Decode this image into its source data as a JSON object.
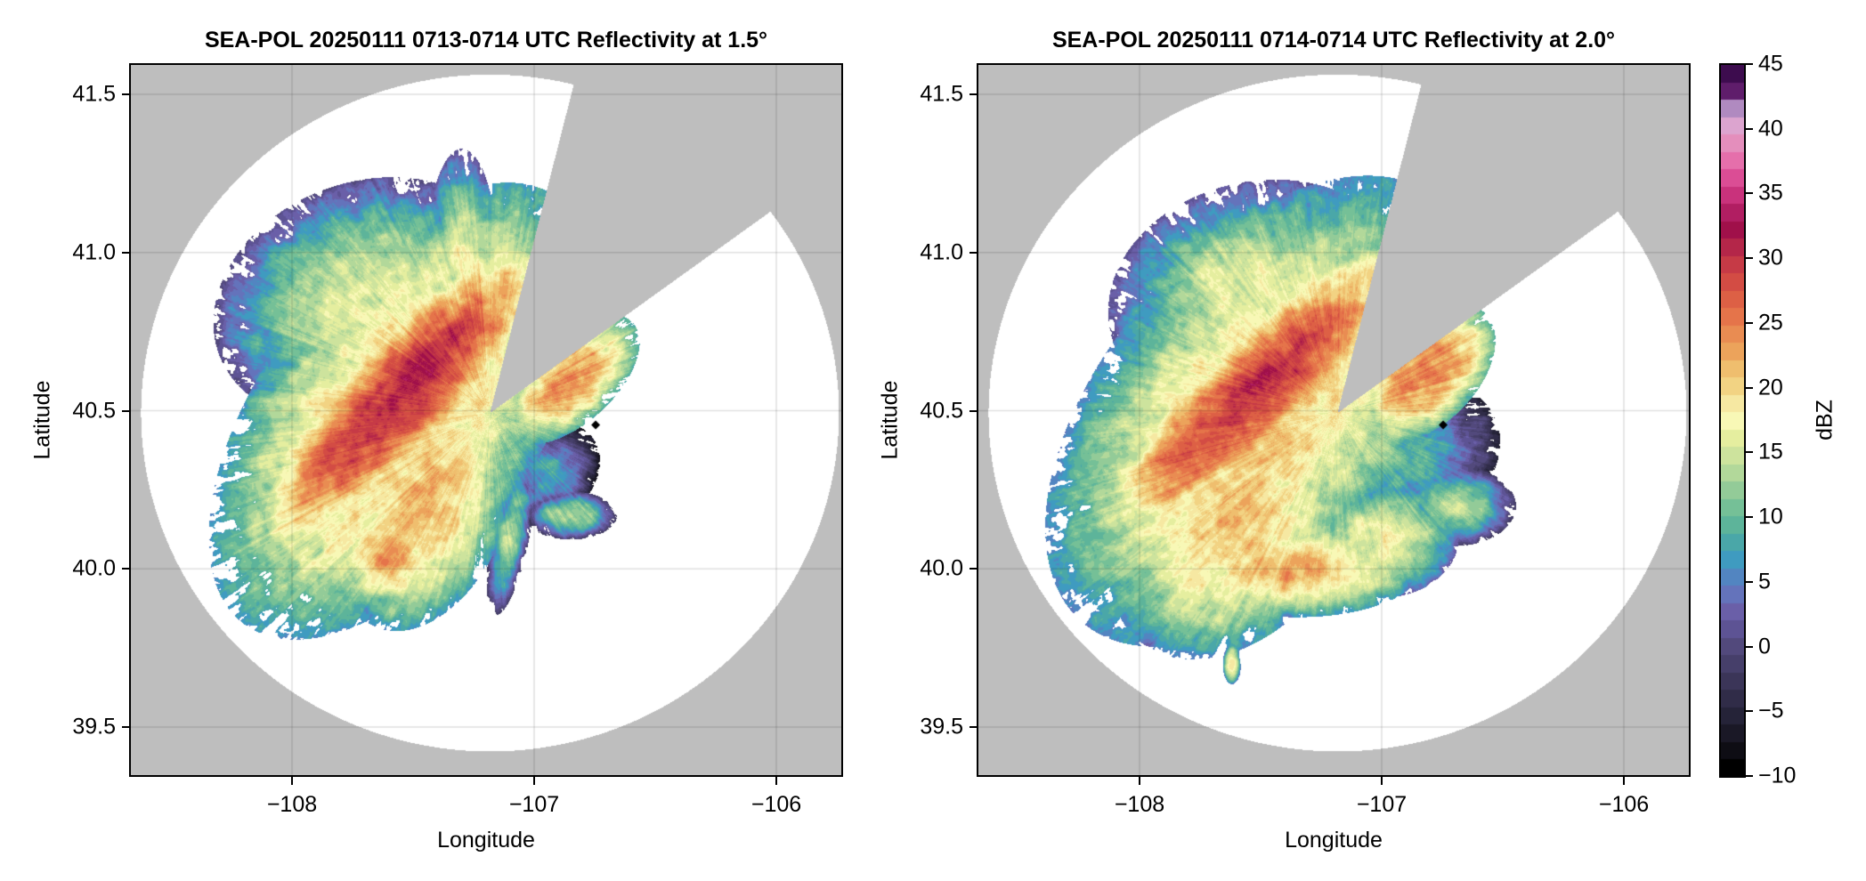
{
  "chart_data": [
    {
      "type": "heatmap",
      "title": "SEA-POL 20250111 0713-0714 UTC Reflectivity at 1.5°",
      "xlabel": "Longitude",
      "ylabel": "Latitude",
      "xlim": [
        -108.669,
        -105.728
      ],
      "ylim": [
        39.345,
        41.596
      ],
      "xticks": [
        -108,
        -107,
        -106
      ],
      "xtick_labels": [
        "−108",
        "−107",
        "−106"
      ],
      "yticks": [
        39.5,
        40.0,
        40.5,
        41.0,
        41.5
      ],
      "ytick_labels": [
        "39.5",
        "40.0",
        "40.5",
        "41.0",
        "41.5"
      ],
      "grid": true,
      "background_color": "#bebebe",
      "coverage_color": "#ffffff",
      "radar_center": {
        "lon": -107.184,
        "lat": 40.494
      },
      "max_range_deg": {
        "lon": 1.441,
        "lat": 1.07
      },
      "blocked_sectors_deg_from_north": [
        [
          14.3,
          54.3
        ]
      ],
      "marker": {
        "lon": -106.746,
        "lat": 40.455,
        "shape": "diamond",
        "color": "#000000"
      },
      "field": "reflectivity_dBZ",
      "features": [
        {
          "lon": -107.55,
          "lat": 40.55,
          "rx": 0.55,
          "ry": 0.16,
          "rot": -38,
          "dbz": 31
        },
        {
          "lon": -107.75,
          "lat": 40.4,
          "rx": 0.35,
          "ry": 0.14,
          "rot": -40,
          "dbz": 29
        },
        {
          "lon": -107.35,
          "lat": 40.72,
          "rx": 0.25,
          "ry": 0.1,
          "rot": -25,
          "dbz": 30
        },
        {
          "lon": -107.55,
          "lat": 40.5,
          "rx": 0.75,
          "ry": 0.4,
          "rot": -40,
          "dbz": 22
        },
        {
          "lon": -107.7,
          "lat": 40.85,
          "rx": 0.5,
          "ry": 0.3,
          "rot": -10,
          "dbz": 16
        },
        {
          "lon": -107.45,
          "lat": 40.2,
          "rx": 0.35,
          "ry": 0.25,
          "rot": -50,
          "dbz": 22
        },
        {
          "lon": -107.6,
          "lat": 40.05,
          "rx": 0.18,
          "ry": 0.14,
          "rot": 0,
          "dbz": 23
        },
        {
          "lon": -107.3,
          "lat": 40.95,
          "rx": 0.12,
          "ry": 0.3,
          "rot": 0,
          "dbz": 17
        },
        {
          "lon": -106.85,
          "lat": 40.6,
          "rx": 0.25,
          "ry": 0.12,
          "rot": -30,
          "dbz": 24
        },
        {
          "lon": -106.95,
          "lat": 40.3,
          "rx": 0.18,
          "ry": 0.12,
          "rot": -20,
          "dbz": 8
        },
        {
          "lon": -107.22,
          "lat": 40.42,
          "rx": 0.1,
          "ry": 0.08,
          "rot": 0,
          "dbz": 3
        },
        {
          "lon": -106.85,
          "lat": 40.17,
          "rx": 0.15,
          "ry": 0.06,
          "rot": 0,
          "dbz": 14
        },
        {
          "lon": -107.1,
          "lat": 40.1,
          "rx": 0.06,
          "ry": 0.2,
          "rot": 15,
          "dbz": 14
        }
      ]
    },
    {
      "type": "heatmap",
      "title": "SEA-POL 20250111 0714-0714 UTC Reflectivity at 2.0°",
      "xlabel": "Longitude",
      "ylabel": "Latitude",
      "xlim": [
        -108.669,
        -105.728
      ],
      "ylim": [
        39.345,
        41.596
      ],
      "xticks": [
        -108,
        -107,
        -106
      ],
      "xtick_labels": [
        "−108",
        "−107",
        "−106"
      ],
      "yticks": [
        39.5,
        40.0,
        40.5,
        41.0,
        41.5
      ],
      "ytick_labels": [
        "39.5",
        "40.0",
        "40.5",
        "41.0",
        "41.5"
      ],
      "grid": true,
      "background_color": "#bebebe",
      "coverage_color": "#ffffff",
      "radar_center": {
        "lon": -107.184,
        "lat": 40.494
      },
      "max_range_deg": {
        "lon": 1.441,
        "lat": 1.07
      },
      "blocked_sectors_deg_from_north": [
        [
          14.3,
          54.3
        ]
      ],
      "marker": {
        "lon": -106.746,
        "lat": 40.455,
        "shape": "diamond",
        "color": "#000000"
      },
      "field": "reflectivity_dBZ",
      "features": [
        {
          "lon": -107.5,
          "lat": 40.58,
          "rx": 0.55,
          "ry": 0.15,
          "rot": -35,
          "dbz": 30
        },
        {
          "lon": -107.75,
          "lat": 40.42,
          "rx": 0.35,
          "ry": 0.14,
          "rot": -40,
          "dbz": 28
        },
        {
          "lon": -107.5,
          "lat": 40.5,
          "rx": 0.8,
          "ry": 0.45,
          "rot": -35,
          "dbz": 21
        },
        {
          "lon": -107.5,
          "lat": 40.85,
          "rx": 0.5,
          "ry": 0.3,
          "rot": -5,
          "dbz": 17
        },
        {
          "lon": -107.6,
          "lat": 40.15,
          "rx": 0.45,
          "ry": 0.3,
          "rot": -30,
          "dbz": 21
        },
        {
          "lon": -107.35,
          "lat": 40.0,
          "rx": 0.4,
          "ry": 0.12,
          "rot": 0,
          "dbz": 22
        },
        {
          "lon": -107.0,
          "lat": 40.1,
          "rx": 0.25,
          "ry": 0.15,
          "rot": 0,
          "dbz": 18
        },
        {
          "lon": -106.82,
          "lat": 40.62,
          "rx": 0.25,
          "ry": 0.14,
          "rot": -30,
          "dbz": 25
        },
        {
          "lon": -106.95,
          "lat": 40.35,
          "rx": 0.35,
          "ry": 0.2,
          "rot": -10,
          "dbz": 10
        },
        {
          "lon": -107.23,
          "lat": 40.4,
          "rx": 0.08,
          "ry": 0.12,
          "rot": 0,
          "dbz": 3
        },
        {
          "lon": -106.7,
          "lat": 40.2,
          "rx": 0.2,
          "ry": 0.1,
          "rot": 0,
          "dbz": 14
        },
        {
          "lon": -107.62,
          "lat": 39.7,
          "rx": 0.03,
          "ry": 0.05,
          "rot": 0,
          "dbz": 20
        }
      ]
    }
  ],
  "colorbar": {
    "label": "dBZ",
    "range": [
      -10,
      45
    ],
    "ticks": [
      -10,
      -5,
      0,
      5,
      10,
      15,
      20,
      25,
      30,
      35,
      40,
      45
    ],
    "tick_labels": [
      "−10",
      "−5",
      "0",
      "5",
      "10",
      "15",
      "20",
      "25",
      "30",
      "35",
      "40",
      "45"
    ],
    "n_levels": 40,
    "colors": [
      "#000000",
      "#0e0d14",
      "#1a1826",
      "#252338",
      "#302c48",
      "#3b3558",
      "#463f6a",
      "#52497c",
      "#5d5394",
      "#6a5fa8",
      "#6473bb",
      "#5285c1",
      "#3f9bc0",
      "#4aa7a8",
      "#5db49a",
      "#75c097",
      "#93cb98",
      "#b2d89a",
      "#cde39d",
      "#e5ee9f",
      "#f8f8b6",
      "#f6e8a2",
      "#f2d383",
      "#efbe6e",
      "#eca35b",
      "#e98c52",
      "#e5744a",
      "#dd6045",
      "#d34c44",
      "#c63a46",
      "#b42649",
      "#a0104a",
      "#b11e62",
      "#c9327c",
      "#db4d95",
      "#e56fab",
      "#e48ebc",
      "#dca4cf",
      "#b08ac0",
      "#5f1d6b",
      "#3d0c4e"
    ]
  }
}
